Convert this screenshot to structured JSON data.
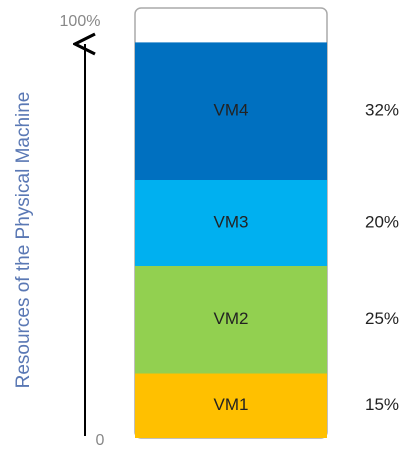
{
  "chart_data": {
    "type": "stacked-bar",
    "y_axis_label": "Resources of the Physical Machine",
    "categories": [
      "VM1",
      "VM2",
      "VM3",
      "VM4"
    ],
    "values": [
      15,
      25,
      20,
      32
    ],
    "value_labels": [
      "15%",
      "25%",
      "20%",
      "32%"
    ],
    "colors": [
      "#ffc000",
      "#92d050",
      "#00b0f0",
      "#0070c0"
    ],
    "ylim": [
      0,
      100
    ],
    "yticks": [
      0,
      {
        "value": 100,
        "label": "100%"
      }
    ]
  }
}
